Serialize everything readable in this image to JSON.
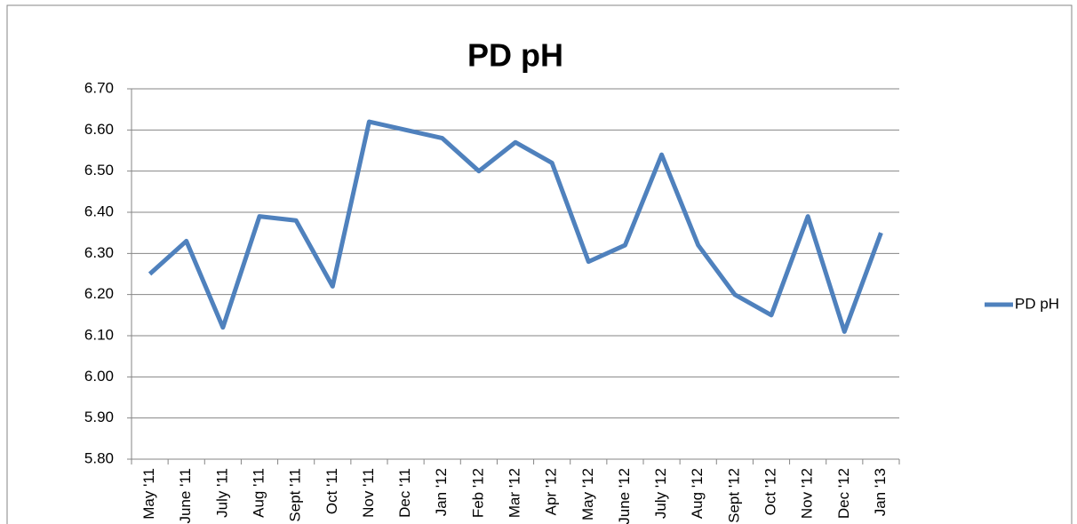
{
  "chart_data": {
    "type": "line",
    "title": "PD pH",
    "categories": [
      "May '11",
      "June '11",
      "July '11",
      "Aug '11",
      "Sept '11",
      "Oct '11",
      "Nov '11",
      "Dec '11",
      "Jan '12",
      "Feb '12",
      "Mar '12",
      "Apr '12",
      "May '12",
      "June '12",
      "July '12",
      "Aug '12",
      "Sept '12",
      "Oct '12",
      "Nov '12",
      "Dec '12",
      "Jan '13"
    ],
    "series": [
      {
        "name": "PD pH",
        "color": "#4f81bd",
        "values": [
          6.25,
          6.33,
          6.12,
          6.39,
          6.38,
          6.22,
          6.62,
          6.6,
          6.58,
          6.5,
          6.57,
          6.52,
          6.28,
          6.32,
          6.54,
          6.32,
          6.2,
          6.15,
          6.39,
          6.11,
          6.35
        ]
      }
    ],
    "ylim": [
      5.8,
      6.7
    ],
    "yticks": [
      {
        "value": 5.8,
        "label": "5.80"
      },
      {
        "value": 5.9,
        "label": "5.90"
      },
      {
        "value": 6.0,
        "label": "6.00"
      },
      {
        "value": 6.1,
        "label": "6.10"
      },
      {
        "value": 6.2,
        "label": "6.20"
      },
      {
        "value": 6.3,
        "label": "6.30"
      },
      {
        "value": 6.4,
        "label": "6.40"
      },
      {
        "value": 6.5,
        "label": "6.50"
      },
      {
        "value": 6.6,
        "label": "6.60"
      },
      {
        "value": 6.7,
        "label": "6.70"
      }
    ],
    "grid": true,
    "legend": "right"
  }
}
